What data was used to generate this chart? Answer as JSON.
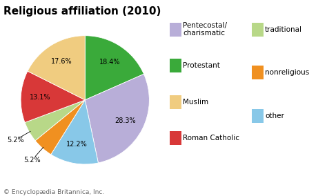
{
  "title": "Religious affiliation (2010)",
  "slices": [
    {
      "label": "Protestant",
      "value": 18.4,
      "color": "#3aaa3a"
    },
    {
      "label": "Pentecostal/charismatic",
      "value": 28.3,
      "color": "#b8aed8"
    },
    {
      "label": "other",
      "value": 12.2,
      "color": "#88c8e8"
    },
    {
      "label": "nonreligious",
      "value": 5.2,
      "color": "#f09020"
    },
    {
      "label": "traditional",
      "value": 5.2,
      "color": "#b8d888"
    },
    {
      "label": "Roman Catholic",
      "value": 13.1,
      "color": "#d83838"
    },
    {
      "label": "Muslim",
      "value": 17.6,
      "color": "#f0cc80"
    }
  ],
  "footnote": "© Encyclopædia Britannica, Inc.",
  "title_fontsize": 11,
  "label_fontsize": 7,
  "legend_fontsize": 7.5,
  "footnote_fontsize": 6.5,
  "legend_col1": [
    {
      "label": "Pentecostal/\ncharismatic",
      "color": "#b8aed8"
    },
    {
      "label": "Protestant",
      "color": "#3aaa3a"
    },
    {
      "label": "Muslim",
      "color": "#f0cc80"
    },
    {
      "label": "Roman Catholic",
      "color": "#d83838"
    }
  ],
  "legend_col2": [
    {
      "label": "traditional",
      "color": "#b8d888"
    },
    {
      "label": "nonreligious",
      "color": "#f09020"
    },
    {
      "label": "other",
      "color": "#88c8e8"
    }
  ]
}
